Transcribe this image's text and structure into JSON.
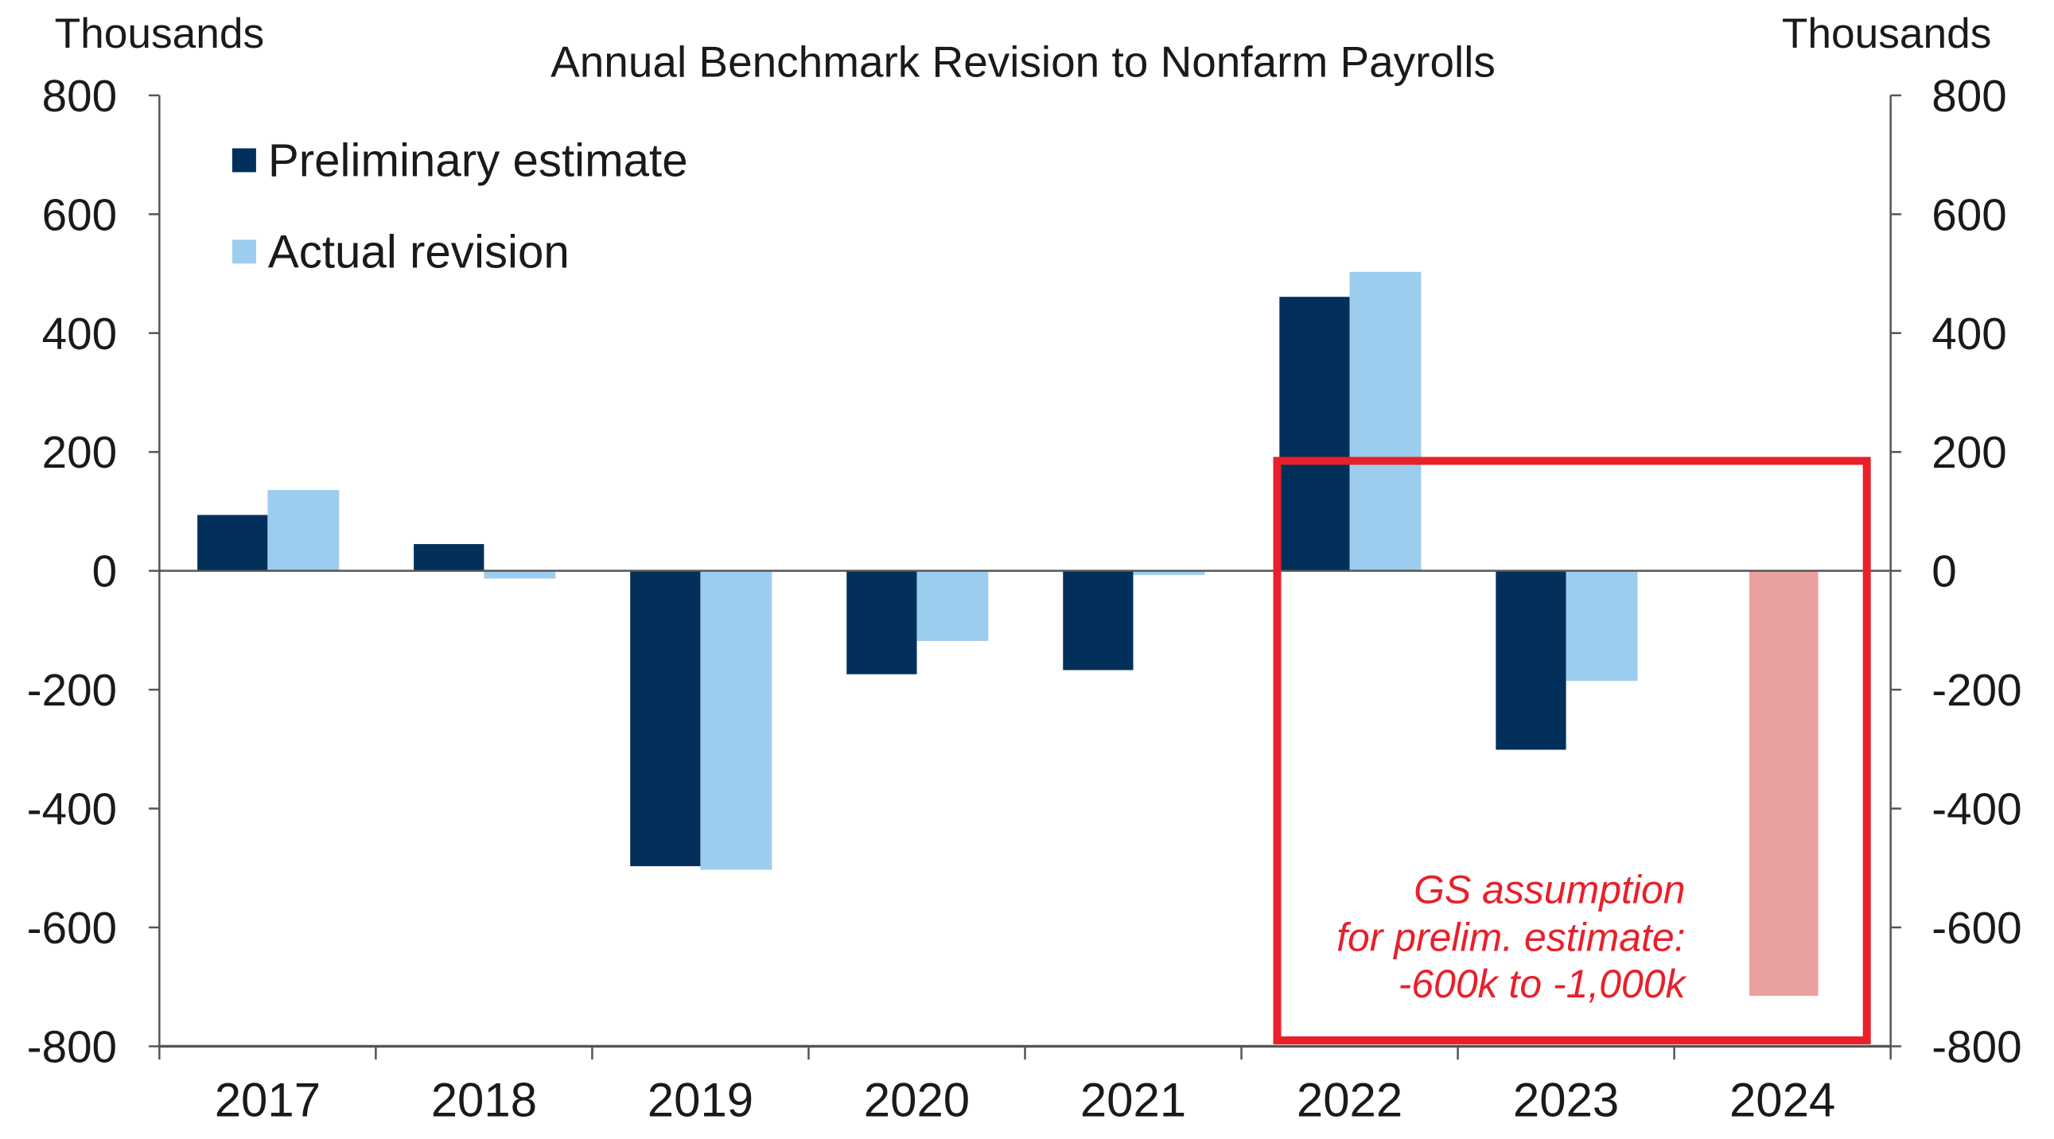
{
  "chart_data": {
    "type": "bar",
    "title": "Annual Benchmark Revision to Nonfarm Payrolls",
    "ylabel_left": "Thousands",
    "ylabel_right": "Thousands",
    "xlabel": "",
    "ylim": [
      -800,
      800
    ],
    "yticks": [
      800,
      600,
      400,
      200,
      0,
      -200,
      -400,
      -600,
      -800
    ],
    "grid": false,
    "legend_position": "top-left",
    "categories": [
      "2017",
      "2018",
      "2019",
      "2020",
      "2021",
      "2022",
      "2023",
      "2024"
    ],
    "series": [
      {
        "name": "Preliminary estimate",
        "color": "#02305a",
        "values": [
          94,
          45,
          -497,
          -174,
          -167,
          461,
          -301,
          null
        ]
      },
      {
        "name": "Actual revision",
        "color": "#9dcdee",
        "values": [
          136,
          -13,
          -503,
          -118,
          -7,
          503,
          -185,
          null
        ]
      },
      {
        "name": "GS assumption",
        "color": "#eba0a0",
        "values": [
          null,
          null,
          null,
          null,
          null,
          null,
          null,
          -715
        ]
      }
    ],
    "highlight_box": {
      "color": "#e8202a",
      "from_category": "2022",
      "to_category": "2024",
      "y_range": [
        -790,
        185
      ]
    },
    "annotation": [
      "GS assumption",
      "for prelim. estimate:",
      "-600k to -1,000k"
    ]
  }
}
